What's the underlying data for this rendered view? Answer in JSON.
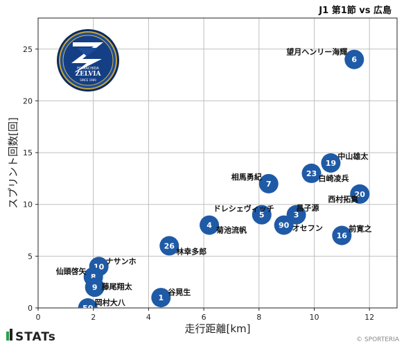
{
  "title": "J1 第1節 vs 広島",
  "brand": "STATs",
  "credit": "© SPORTERIA",
  "team_logo": {
    "label": "FC MACHIDA ZELVIA",
    "lines": [
      "FC MACHIDA",
      "ZELVIA",
      "SINCE 1989"
    ]
  },
  "colors": {
    "point": "#1f5aa6",
    "point_text": "#ffffff",
    "grid": "#bfbfbf"
  },
  "chart_data": {
    "type": "scatter",
    "xlabel": "走行距離[km]",
    "ylabel": "スプリント回数[回]",
    "xlim": [
      0,
      13
    ],
    "ylim": [
      0,
      28
    ],
    "xticks": [
      0,
      2,
      4,
      6,
      8,
      10,
      12
    ],
    "yticks": [
      0,
      5,
      10,
      15,
      20,
      25
    ],
    "grid": true,
    "points": [
      {
        "num": "6",
        "name": "望月ヘンリー海輝",
        "x": 11.45,
        "y": 24
      },
      {
        "num": "19",
        "name": "中山雄太",
        "x": 10.6,
        "y": 14
      },
      {
        "num": "23",
        "name": "白崎凌兵",
        "x": 9.9,
        "y": 13
      },
      {
        "num": "20",
        "name": "西村拓真",
        "x": 11.65,
        "y": 11
      },
      {
        "num": "7",
        "name": "相馬勇紀",
        "x": 8.35,
        "y": 12
      },
      {
        "num": "5",
        "name": "ドレシェヴィッチ",
        "x": 8.1,
        "y": 9
      },
      {
        "num": "3",
        "name": "昌子源",
        "x": 9.35,
        "y": 9
      },
      {
        "num": "90",
        "name": "オセフン",
        "x": 8.9,
        "y": 8
      },
      {
        "num": "16",
        "name": "前寛之",
        "x": 11.0,
        "y": 7
      },
      {
        "num": "4",
        "name": "菊池流帆",
        "x": 6.2,
        "y": 8
      },
      {
        "num": "26",
        "name": "林幸多郎",
        "x": 4.75,
        "y": 6
      },
      {
        "num": "10",
        "name": "ナサンホ",
        "x": 2.2,
        "y": 4
      },
      {
        "num": "8",
        "name": "仙頭啓矢",
        "x": 2.0,
        "y": 3
      },
      {
        "num": "9",
        "name": "藤尾翔太",
        "x": 2.05,
        "y": 2
      },
      {
        "num": "50",
        "name": "岡村大八",
        "x": 1.8,
        "y": 0
      },
      {
        "num": "1",
        "name": "谷晃生",
        "x": 4.45,
        "y": 1
      }
    ]
  }
}
